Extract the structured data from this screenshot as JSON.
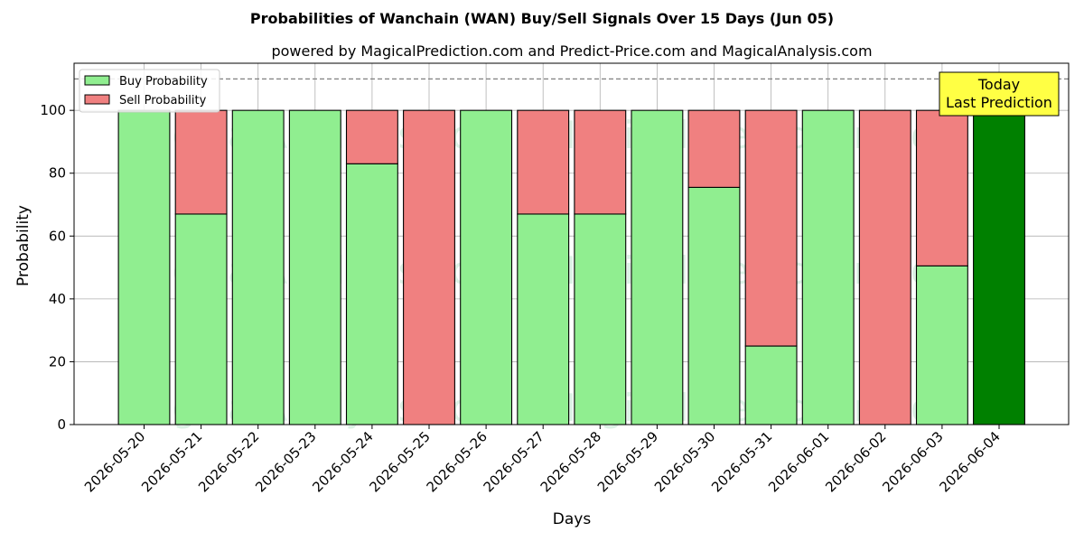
{
  "chart_data": {
    "type": "bar",
    "stacked": true,
    "title": "Probabilities of Wanchain (WAN) Buy/Sell Signals Over 15 Days (Jun 05)",
    "subtitle": "powered by MagicalPrediction.com and Predict-Price.com and MagicalAnalysis.com",
    "xlabel": "Days",
    "ylabel": "Probability",
    "ylim": [
      0,
      115
    ],
    "yticks": [
      0,
      20,
      40,
      60,
      80,
      100
    ],
    "reference_line": 110,
    "grid": true,
    "legend_position": "top-left",
    "categories": [
      "2026-05-20",
      "2026-05-21",
      "2026-05-22",
      "2026-05-23",
      "2026-05-24",
      "2026-05-25",
      "2026-05-26",
      "2026-05-27",
      "2026-05-28",
      "2026-05-29",
      "2026-05-30",
      "2026-05-31",
      "2026-06-01",
      "2026-06-02",
      "2026-06-03",
      "2026-06-04"
    ],
    "series": [
      {
        "name": "Buy Probability",
        "color": "#90ee90",
        "values": [
          100,
          67,
          100,
          100,
          83,
          0,
          100,
          67,
          67,
          100,
          75.5,
          25,
          100,
          0,
          50.5,
          100
        ]
      },
      {
        "name": "Sell Probability",
        "color": "#f08080",
        "values": [
          0,
          33,
          0,
          0,
          17,
          100,
          0,
          33,
          33,
          0,
          24.5,
          75,
          0,
          100,
          49.5,
          0
        ]
      }
    ],
    "highlight": {
      "index": 15,
      "color": "#008000",
      "annotation": [
        "Today",
        "Last Prediction"
      ],
      "annotation_bg": "#ffff44"
    },
    "watermarks": [
      "MagicalAnalysis.com",
      "MagicalPrediction.com"
    ]
  }
}
